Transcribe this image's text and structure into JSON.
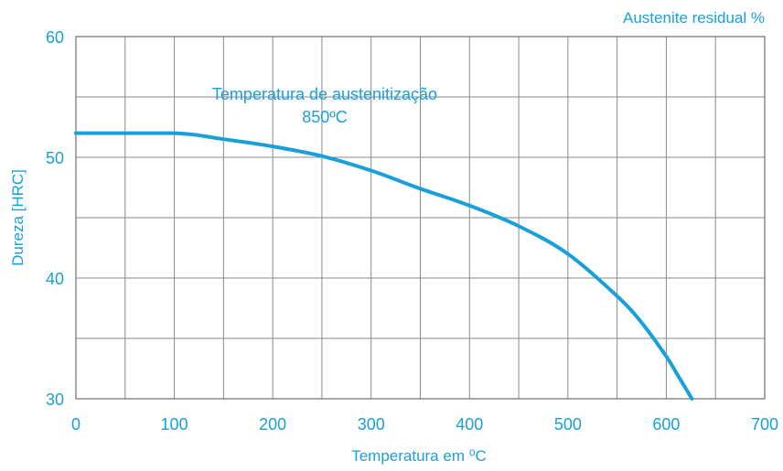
{
  "chart_data": {
    "type": "line",
    "title": "",
    "xlabel": "Temperatura em ⁰C",
    "ylabel": "Dureza [HRC]",
    "secondary_axis_label": "Austenite residual %",
    "annotation": {
      "line1": "Temperatura de austenitização",
      "line2": "850ºC"
    },
    "xlim": [
      0,
      700
    ],
    "ylim": [
      30,
      60
    ],
    "x_ticks": [
      0,
      100,
      200,
      300,
      400,
      500,
      600,
      700
    ],
    "y_ticks": [
      30,
      40,
      50,
      60
    ],
    "grid": true,
    "series_color": "#1aa0d8",
    "series": [
      {
        "name": "",
        "x": [
          0,
          100,
          150,
          200,
          250,
          300,
          350,
          400,
          450,
          500,
          550,
          575,
          600,
          612,
          626
        ],
        "y": [
          52.0,
          52.0,
          51.5,
          50.9,
          50.1,
          48.9,
          47.4,
          46.0,
          44.3,
          42.0,
          38.5,
          36.3,
          33.5,
          31.9,
          30.0
        ]
      }
    ]
  }
}
